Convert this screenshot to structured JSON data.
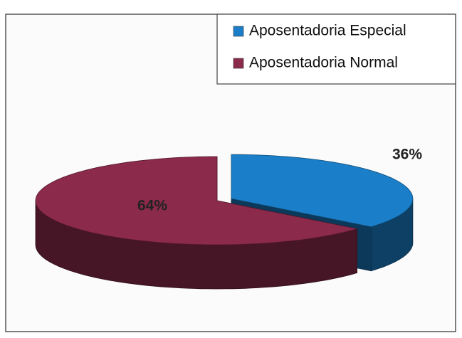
{
  "chart_data": {
    "type": "pie3d",
    "categories": [
      "Aposentadoria Especial",
      "Aposentadoria Normal"
    ],
    "values": [
      36,
      64
    ],
    "value_labels": [
      "36%",
      "64%"
    ],
    "colors": [
      "#1a7fc8",
      "#8c2a4c"
    ],
    "legend": "top-right"
  }
}
